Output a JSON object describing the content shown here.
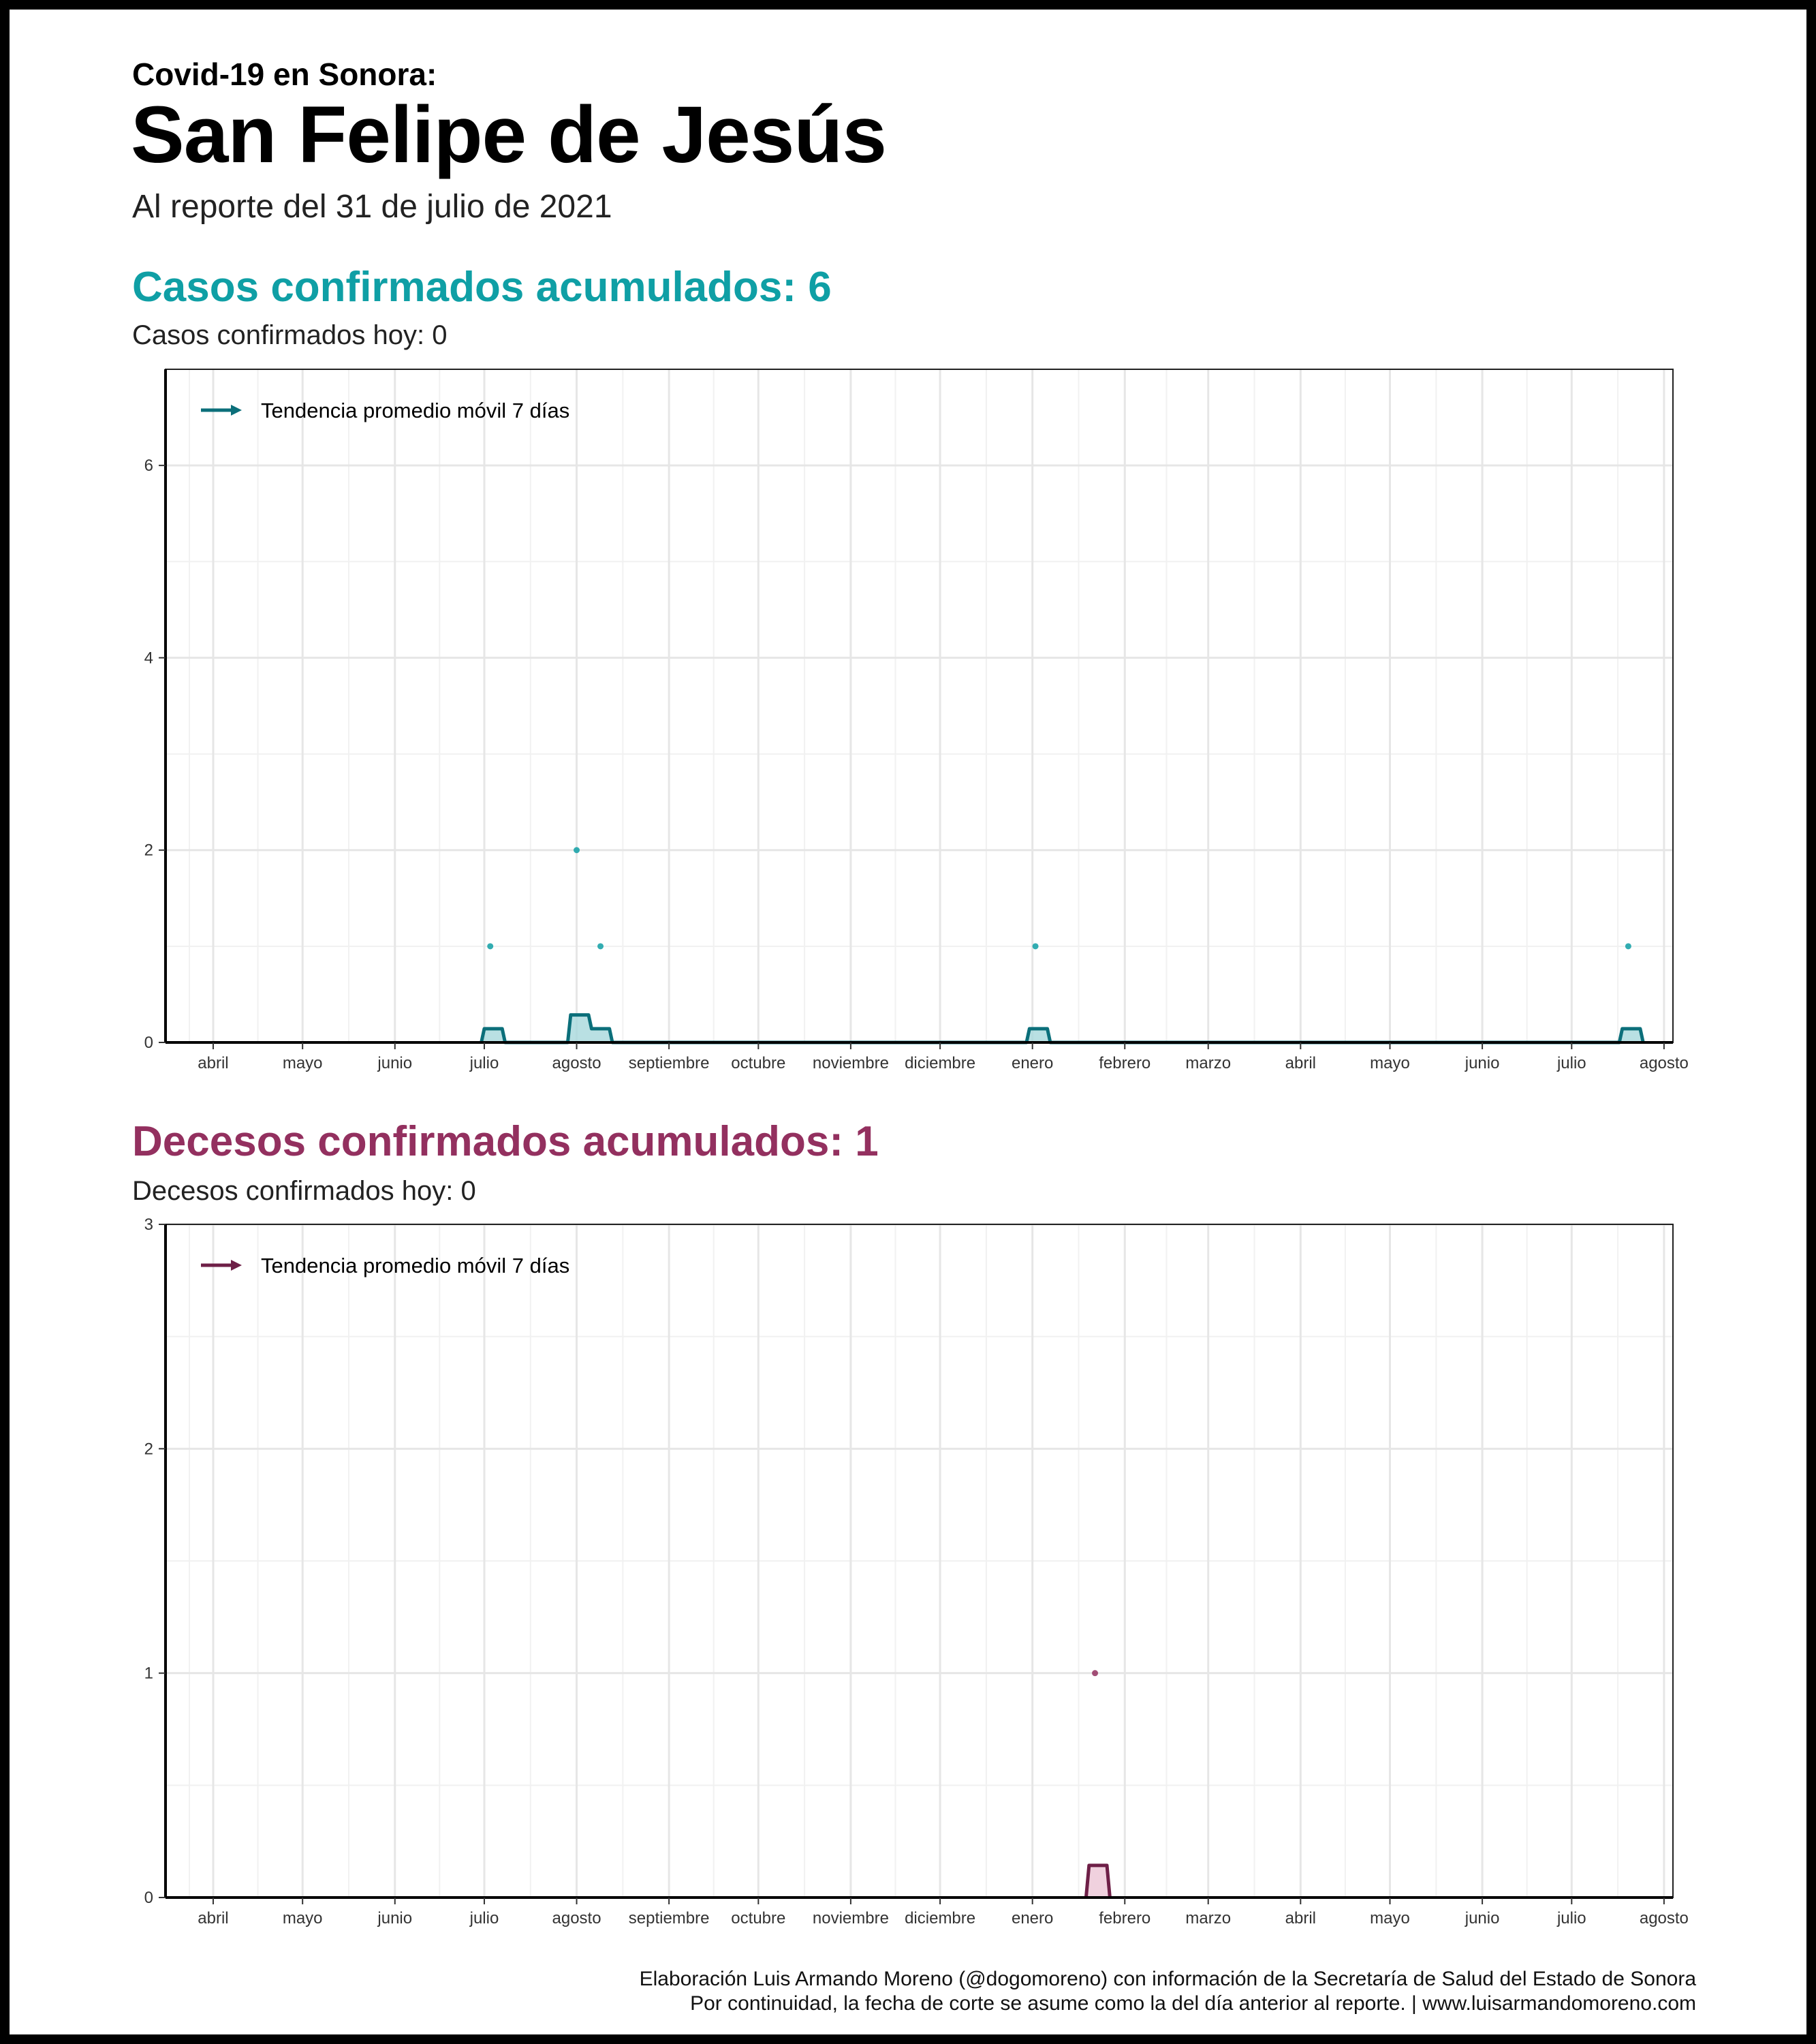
{
  "header": {
    "supertitle": "Covid-19 en Sonora:",
    "title": "San Felipe de Jesús",
    "subtitle": "Al reporte del 31 de julio de 2021"
  },
  "cases": {
    "title": "Casos confirmados acumulados: 6",
    "subtitle": "Casos confirmados hoy: 0"
  },
  "deaths": {
    "title": "Decesos confirmados acumulados: 1",
    "subtitle": "Decesos confirmados hoy: 0"
  },
  "footer": {
    "line1": "Elaboración Luis Armando Moreno (@dogomoreno) con información de la Secretaría de Salud del Estado de Sonora",
    "line2": "Por continuidad, la fecha de corte se asume como la del día anterior al reporte. | www.luisarmandomoreno.com"
  },
  "colors": {
    "cases_accent": "#0f9fa5",
    "cases_line": "#0b6f7a",
    "cases_fill": "#a7d8dc",
    "deaths_accent": "#93305f",
    "deaths_line": "#6e1f47",
    "deaths_fill": "#ecc6d6"
  },
  "chart_data": [
    {
      "id": "cases",
      "type": "scatter",
      "title": "Casos confirmados acumulados: 6",
      "xlabel": "",
      "ylabel": "",
      "x_range": [
        "2020-03-16",
        "2021-08-04"
      ],
      "ylim": [
        0,
        7
      ],
      "y_ticks": [
        0,
        2,
        4,
        6
      ],
      "x_tick_labels": [
        "abril",
        "mayo",
        "junio",
        "julio",
        "agosto",
        "septiembre",
        "octubre",
        "noviembre",
        "diciembre",
        "enero",
        "febrero",
        "marzo",
        "abril",
        "mayo",
        "junio",
        "julio",
        "agosto"
      ],
      "x_tick_dates": [
        "2020-04-01",
        "2020-05-01",
        "2020-06-01",
        "2020-07-01",
        "2020-08-01",
        "2020-09-01",
        "2020-10-01",
        "2020-11-01",
        "2020-12-01",
        "2021-01-01",
        "2021-02-01",
        "2021-03-01",
        "2021-04-01",
        "2021-05-01",
        "2021-06-01",
        "2021-07-01",
        "2021-08-01"
      ],
      "legend": {
        "label": "Tendencia promedio móvil 7 días",
        "position": "top-left"
      },
      "grid": true,
      "points": [
        {
          "date": "2020-07-03",
          "value": 1
        },
        {
          "date": "2020-08-01",
          "value": 2
        },
        {
          "date": "2020-08-09",
          "value": 1
        },
        {
          "date": "2021-01-02",
          "value": 1
        },
        {
          "date": "2021-07-20",
          "value": 1
        }
      ],
      "trend": [
        {
          "date": "2020-06-30",
          "value": 0
        },
        {
          "date": "2020-07-01",
          "value": 0.143
        },
        {
          "date": "2020-07-07",
          "value": 0.143
        },
        {
          "date": "2020-07-08",
          "value": 0
        },
        {
          "date": "2020-07-29",
          "value": 0
        },
        {
          "date": "2020-07-30",
          "value": 0.286
        },
        {
          "date": "2020-08-05",
          "value": 0.286
        },
        {
          "date": "2020-08-06",
          "value": 0.143
        },
        {
          "date": "2020-08-12",
          "value": 0.143
        },
        {
          "date": "2020-08-13",
          "value": 0
        },
        {
          "date": "2020-12-30",
          "value": 0
        },
        {
          "date": "2020-12-31",
          "value": 0.143
        },
        {
          "date": "2021-01-06",
          "value": 0.143
        },
        {
          "date": "2021-01-07",
          "value": 0
        },
        {
          "date": "2021-07-17",
          "value": 0
        },
        {
          "date": "2021-07-18",
          "value": 0.143
        },
        {
          "date": "2021-07-24",
          "value": 0.143
        },
        {
          "date": "2021-07-25",
          "value": 0
        }
      ]
    },
    {
      "id": "deaths",
      "type": "scatter",
      "title": "Decesos confirmados acumulados: 1",
      "xlabel": "",
      "ylabel": "",
      "x_range": [
        "2020-03-16",
        "2021-08-04"
      ],
      "ylim": [
        0,
        3
      ],
      "y_ticks": [
        0,
        1,
        2,
        3
      ],
      "x_tick_labels": [
        "abril",
        "mayo",
        "junio",
        "julio",
        "agosto",
        "septiembre",
        "octubre",
        "noviembre",
        "diciembre",
        "enero",
        "febrero",
        "marzo",
        "abril",
        "mayo",
        "junio",
        "julio",
        "agosto"
      ],
      "x_tick_dates": [
        "2020-04-01",
        "2020-05-01",
        "2020-06-01",
        "2020-07-01",
        "2020-08-01",
        "2020-09-01",
        "2020-10-01",
        "2020-11-01",
        "2020-12-01",
        "2021-01-01",
        "2021-02-01",
        "2021-03-01",
        "2021-04-01",
        "2021-05-01",
        "2021-06-01",
        "2021-07-01",
        "2021-08-01"
      ],
      "legend": {
        "label": "Tendencia promedio móvil 7 días",
        "position": "top-left"
      },
      "grid": true,
      "points": [
        {
          "date": "2021-01-22",
          "value": 1
        }
      ],
      "trend": [
        {
          "date": "2021-01-19",
          "value": 0
        },
        {
          "date": "2021-01-20",
          "value": 0.143
        },
        {
          "date": "2021-01-26",
          "value": 0.143
        },
        {
          "date": "2021-01-27",
          "value": 0
        }
      ]
    }
  ]
}
